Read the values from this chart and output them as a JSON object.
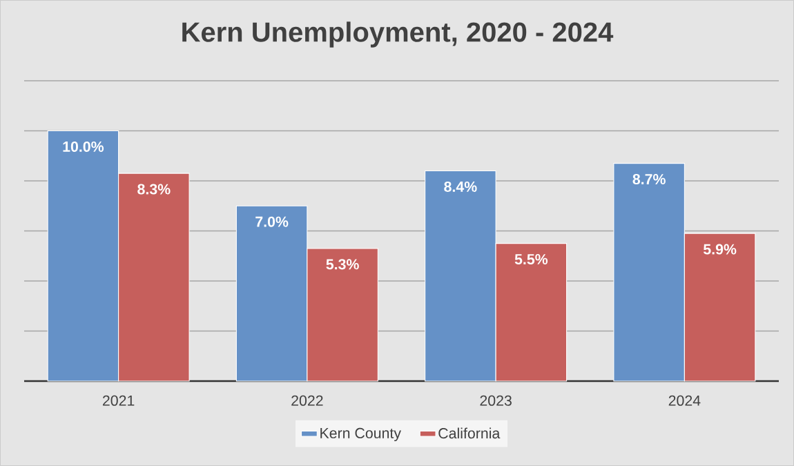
{
  "chart_data": {
    "type": "bar",
    "title": "Kern Unemployment, 2020 - 2024",
    "categories": [
      "2021",
      "2022",
      "2023",
      "2024"
    ],
    "series": [
      {
        "name": "Kern County",
        "color": "#6591c7",
        "values": [
          10.0,
          7.0,
          8.4,
          8.7
        ],
        "value_labels": [
          "10.0%",
          "7.0%",
          "8.4%",
          "8.7%"
        ]
      },
      {
        "name": "California",
        "color": "#c65f5c",
        "values": [
          8.3,
          5.3,
          5.5,
          5.9
        ],
        "value_labels": [
          "8.3%",
          "5.3%",
          "5.5%",
          "5.9%"
        ]
      }
    ],
    "ylim": [
      0,
      12
    ],
    "yticks": [
      {
        "value": 0,
        "label": null
      },
      {
        "value": 2,
        "label": null
      },
      {
        "value": 4,
        "label": null
      },
      {
        "value": 6,
        "label": null
      },
      {
        "value": 8,
        "label": null
      },
      {
        "value": 10,
        "label": null
      },
      {
        "value": 12,
        "label": null
      }
    ],
    "tick_labels": "x",
    "grid": "y",
    "legend": "bottom"
  }
}
